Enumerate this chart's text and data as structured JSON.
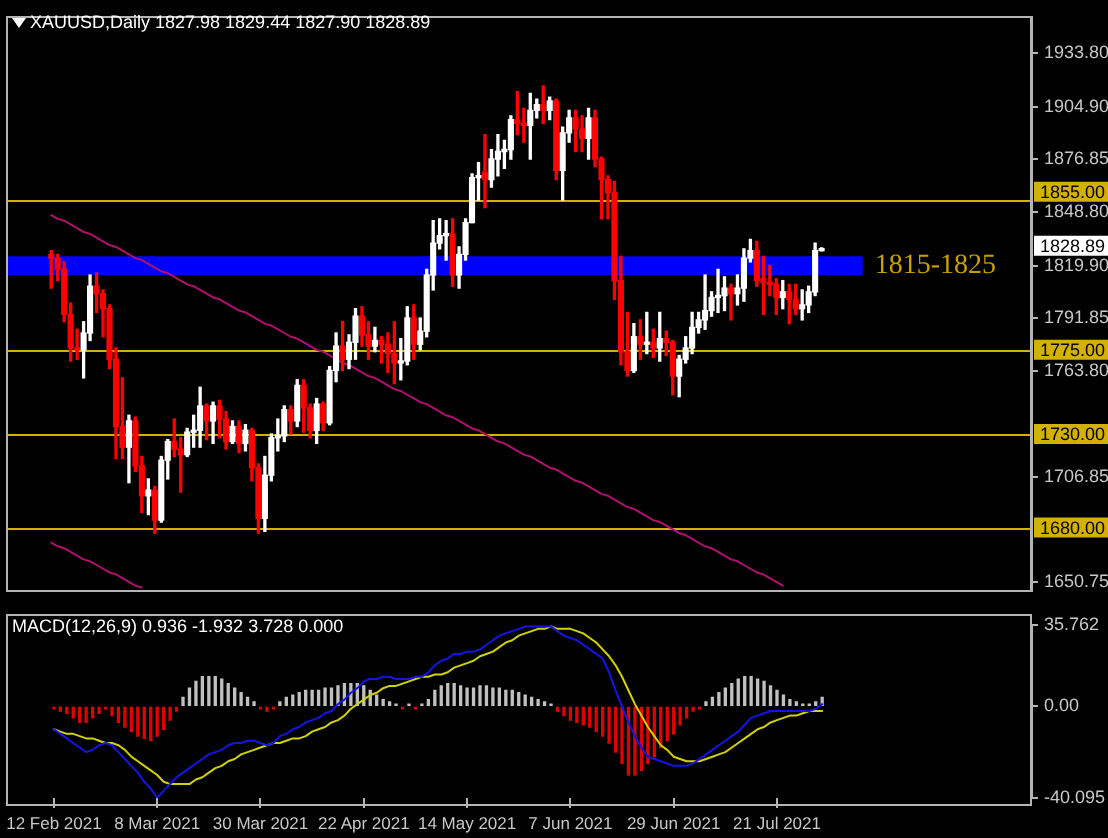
{
  "chart_data": [
    {
      "type": "candlestick",
      "title": "XAUUSD,Daily 1827.98 1829.44 1827.90 1828.89",
      "categories": [
        null,
        null,
        null,
        null,
        null,
        null,
        null,
        null,
        null,
        null,
        null,
        null,
        null,
        null,
        null,
        null,
        null,
        null,
        null,
        null,
        null,
        null,
        null,
        null,
        null,
        null,
        null,
        null,
        null,
        null,
        null,
        null,
        null,
        null,
        null,
        null,
        null,
        null,
        null,
        null,
        null,
        null,
        null,
        null,
        null,
        null,
        null,
        null,
        null,
        null,
        null,
        null,
        null,
        null,
        null,
        null,
        null,
        null,
        null,
        null,
        null,
        null,
        null,
        null,
        null,
        null,
        null,
        null,
        null,
        null,
        null,
        null,
        null,
        null,
        null,
        null,
        null,
        null,
        null,
        null,
        null,
        null,
        null,
        null,
        null,
        null,
        null,
        null,
        null,
        null,
        null,
        null,
        null,
        null,
        null,
        null,
        null,
        null,
        null,
        null,
        null,
        null,
        null,
        null,
        null,
        null,
        null,
        null,
        null,
        null,
        null,
        null,
        null,
        null,
        null,
        null,
        null,
        null,
        null,
        null,
        null,
        null,
        null,
        null,
        null,
        null,
        null,
        null,
        null,
        null,
        null,
        null,
        null,
        null,
        null,
        null,
        null,
        null,
        null,
        null,
        null,
        null,
        null,
        null,
        null,
        null,
        null,
        null,
        null,
        null,
        null,
        null
      ],
      "ohlc": [
        [
          1826,
          1828,
          1808,
          1824
        ],
        [
          1824,
          1826,
          1812,
          1818
        ],
        [
          1818,
          1822,
          1790,
          1794
        ],
        [
          1794,
          1800,
          1769,
          1776
        ],
        [
          1776,
          1786,
          1770,
          1775
        ],
        [
          1775,
          1790,
          1760,
          1784
        ],
        [
          1784,
          1815,
          1780,
          1809
        ],
        [
          1809,
          1816,
          1795,
          1805
        ],
        [
          1805,
          1807,
          1782,
          1797
        ],
        [
          1797,
          1799,
          1765,
          1770
        ],
        [
          1770,
          1776,
          1717,
          1734
        ],
        [
          1734,
          1760,
          1717,
          1723
        ],
        [
          1723,
          1740,
          1704,
          1737
        ],
        [
          1737,
          1739,
          1710,
          1713
        ],
        [
          1713,
          1718,
          1688,
          1697
        ],
        [
          1697,
          1706,
          1687,
          1700
        ],
        [
          1700,
          1702,
          1677,
          1684
        ],
        [
          1684,
          1718,
          1683,
          1716
        ],
        [
          1716,
          1727,
          1706,
          1726
        ],
        [
          1726,
          1738,
          1718,
          1722
        ],
        [
          1722,
          1728,
          1699,
          1719
        ],
        [
          1719,
          1733,
          1718,
          1731
        ],
        [
          1731,
          1740,
          1723,
          1732
        ],
        [
          1732,
          1755,
          1723,
          1745
        ],
        [
          1745,
          1746,
          1727,
          1737
        ],
        [
          1737,
          1747,
          1725,
          1745
        ],
        [
          1745,
          1748,
          1728,
          1738
        ],
        [
          1738,
          1742,
          1722,
          1726
        ],
        [
          1726,
          1737,
          1725,
          1734
        ],
        [
          1734,
          1737,
          1720,
          1725
        ],
        [
          1725,
          1735,
          1721,
          1732
        ],
        [
          1732,
          1733,
          1705,
          1712
        ],
        [
          1712,
          1714,
          1677,
          1685
        ],
        [
          1685,
          1718,
          1678,
          1708
        ],
        [
          1708,
          1730,
          1705,
          1728
        ],
        [
          1728,
          1738,
          1721,
          1729
        ],
        [
          1729,
          1745,
          1726,
          1743
        ],
        [
          1743,
          1745,
          1730,
          1737
        ],
        [
          1737,
          1759,
          1734,
          1756
        ],
        [
          1756,
          1759,
          1731,
          1744
        ],
        [
          1744,
          1746,
          1728,
          1732
        ],
        [
          1732,
          1749,
          1725,
          1746
        ],
        [
          1746,
          1747,
          1732,
          1736
        ],
        [
          1736,
          1766,
          1735,
          1764
        ],
        [
          1764,
          1784,
          1758,
          1777
        ],
        [
          1777,
          1790,
          1764,
          1770
        ],
        [
          1770,
          1783,
          1765,
          1779
        ],
        [
          1779,
          1797,
          1770,
          1793
        ],
        [
          1793,
          1798,
          1777,
          1783
        ],
        [
          1783,
          1790,
          1770,
          1777
        ],
        [
          1777,
          1787,
          1774,
          1780
        ],
        [
          1780,
          1782,
          1768,
          1778
        ],
        [
          1778,
          1784,
          1763,
          1773
        ],
        [
          1773,
          1790,
          1757,
          1768
        ],
        [
          1768,
          1781,
          1759,
          1769
        ],
        [
          1769,
          1798,
          1767,
          1792
        ],
        [
          1792,
          1799,
          1770,
          1778
        ],
        [
          1778,
          1792,
          1775,
          1785
        ],
        [
          1785,
          1818,
          1782,
          1815
        ],
        [
          1815,
          1844,
          1807,
          1832
        ],
        [
          1832,
          1845,
          1829,
          1836
        ],
        [
          1836,
          1844,
          1823,
          1837
        ],
        [
          1837,
          1845,
          1809,
          1815
        ],
        [
          1815,
          1830,
          1808,
          1826
        ],
        [
          1826,
          1845,
          1823,
          1843
        ],
        [
          1843,
          1869,
          1843,
          1867
        ],
        [
          1867,
          1875,
          1855,
          1868
        ],
        [
          1870,
          1890,
          1851,
          1866
        ],
        [
          1866,
          1882,
          1862,
          1877
        ],
        [
          1877,
          1890,
          1868,
          1881
        ],
        [
          1881,
          1887,
          1872,
          1882
        ],
        [
          1882,
          1900,
          1877,
          1898
        ],
        [
          1898,
          1913,
          1890,
          1896
        ],
        [
          1896,
          1904,
          1886,
          1895
        ],
        [
          1895,
          1912,
          1877,
          1903
        ],
        [
          1903,
          1909,
          1899,
          1906
        ],
        [
          1906,
          1916,
          1896,
          1903
        ],
        [
          1903,
          1910,
          1898,
          1908
        ],
        [
          1908,
          1909,
          1866,
          1871
        ],
        [
          1871,
          1894,
          1855,
          1891
        ],
        [
          1891,
          1903,
          1886,
          1899
        ],
        [
          1899,
          1903,
          1881,
          1893
        ],
        [
          1893,
          1900,
          1881,
          1888
        ],
        [
          1888,
          1904,
          1877,
          1899
        ],
        [
          1899,
          1903,
          1873,
          1877
        ],
        [
          1877,
          1878,
          1845,
          1866
        ],
        [
          1866,
          1868,
          1845,
          1859
        ],
        [
          1859,
          1865,
          1802,
          1812
        ],
        [
          1812,
          1825,
          1767,
          1774
        ],
        [
          1774,
          1795,
          1761,
          1764
        ],
        [
          1764,
          1789,
          1763,
          1782
        ],
        [
          1782,
          1791,
          1770,
          1778
        ],
        [
          1778,
          1795,
          1773,
          1779
        ],
        [
          1779,
          1786,
          1771,
          1776
        ],
        [
          1776,
          1795,
          1769,
          1781
        ],
        [
          1781,
          1785,
          1772,
          1779
        ],
        [
          1779,
          1780,
          1751,
          1761
        ],
        [
          1761,
          1772,
          1750,
          1770
        ],
        [
          1770,
          1782,
          1768,
          1776
        ],
        [
          1776,
          1795,
          1773,
          1787
        ],
        [
          1787,
          1795,
          1784,
          1791
        ],
        [
          1791,
          1815,
          1786,
          1796
        ],
        [
          1796,
          1806,
          1793,
          1803
        ],
        [
          1803,
          1818,
          1795,
          1804
        ],
        [
          1804,
          1814,
          1796,
          1808
        ],
        [
          1808,
          1810,
          1791,
          1805
        ],
        [
          1805,
          1815,
          1799,
          1808
        ],
        [
          1808,
          1829,
          1801,
          1824
        ],
        [
          1824,
          1834,
          1822,
          1828
        ],
        [
          1828,
          1833,
          1809,
          1812
        ],
        [
          1813,
          1825,
          1794,
          1811
        ],
        [
          1811,
          1820,
          1804,
          1810
        ],
        [
          1810,
          1813,
          1794,
          1803
        ],
        [
          1803,
          1812,
          1797,
          1806
        ],
        [
          1806,
          1810,
          1789,
          1802
        ],
        [
          1802,
          1810,
          1794,
          1797
        ],
        [
          1797,
          1807,
          1791,
          1799
        ],
        [
          1799,
          1809,
          1795,
          1806
        ],
        [
          1806,
          1832,
          1804,
          1828
        ],
        [
          1827.98,
          1829.44,
          1827.9,
          1828.89
        ],
        null,
        null,
        null,
        null,
        null,
        null,
        null,
        null,
        null,
        null,
        null,
        null,
        null,
        null,
        null,
        null,
        null,
        null,
        null,
        null,
        null,
        null,
        null,
        null,
        null,
        null,
        null,
        null,
        null,
        null,
        null,
        null
      ],
      "colors": [
        "#ff0000",
        "#ff0000",
        "#ff0000",
        "#ff0000",
        "#ff0000",
        "#ffffff",
        "#ffffff",
        "#ff0000",
        "#ff0000",
        "#ff0000",
        "#ff0000",
        "#ff0000",
        "#ffffff",
        "#ff0000",
        "#ff0000",
        "#ffffff",
        "#ff0000",
        "#ffffff",
        "#ffffff",
        "#ff0000",
        "#ff0000",
        "#ffffff",
        "#ffffff",
        "#ffffff",
        "#ff0000",
        "#ffffff",
        "#ff0000",
        "#ff0000",
        "#ffffff",
        "#ff0000",
        "#ffffff",
        "#ff0000",
        "#ff0000",
        "#ffffff",
        "#ffffff",
        "#ffffff",
        "#ffffff",
        "#ff0000",
        "#ffffff",
        "#ff0000",
        "#ff0000",
        "#ffffff",
        "#ff0000",
        "#ffffff",
        "#ffffff",
        "#ff0000",
        "#ffffff",
        "#ffffff",
        "#ff0000",
        "#ff0000",
        "#ffffff",
        "#ff0000",
        "#ff0000",
        "#ff0000",
        "#ffffff",
        "#ffffff",
        "#ff0000",
        "#ffffff",
        "#ffffff",
        "#ffffff",
        "#ffffff",
        "#ffffff",
        "#ff0000",
        "#ffffff",
        "#ffffff",
        "#ffffff",
        "#ffffff",
        "#ff0000",
        "#ffffff",
        "#ffffff",
        "#ffffff",
        "#ffffff",
        "#ff0000",
        "#ff0000",
        "#ffffff",
        "#ffffff",
        "#ff0000",
        "#ffffff",
        "#ff0000",
        "#ffffff",
        "#ffffff",
        "#ff0000",
        "#ff0000",
        "#ffffff",
        "#ff0000",
        "#ff0000",
        "#ff0000",
        "#ff0000",
        "#ff0000",
        "#ff0000",
        "#ffffff",
        "#ff0000",
        "#ffffff",
        "#ff0000",
        "#ffffff",
        "#ff0000",
        "#ff0000",
        "#ffffff",
        "#ffffff",
        "#ffffff",
        "#ffffff",
        "#ffffff",
        "#ffffff",
        "#ffffff",
        "#ffffff",
        "#ff0000",
        "#ffffff",
        "#ffffff",
        "#ffffff",
        "#ff0000",
        "#ff0000",
        "#ff0000",
        "#ff0000",
        "#ffffff",
        "#ff0000",
        "#ff0000",
        "#ffffff",
        "#ffffff",
        "#ffffff",
        "#ffffff",
        null,
        null,
        null,
        null,
        null,
        null,
        null,
        null,
        null,
        null,
        null,
        null,
        null,
        null,
        null,
        null,
        null,
        null,
        null,
        null,
        null,
        null,
        null,
        null,
        null,
        null,
        null,
        null,
        null,
        null,
        null,
        null
      ],
      "series": [
        {
          "type": "line",
          "color": "#b0106e",
          "values": [
            1847,
            1845,
            1844,
            1842,
            1840,
            1838,
            1837,
            1835,
            1833,
            1831,
            1830,
            1828,
            1826,
            1824,
            1823,
            1821,
            1819,
            1817,
            1816,
            1814,
            1812,
            1810,
            1809,
            1807,
            1805,
            1803,
            1802,
            1800,
            1798,
            1796,
            1795,
            1793,
            1791,
            1789,
            1788,
            1786,
            1784,
            1782,
            1781,
            1779,
            1777,
            1775,
            1774,
            1772,
            1770,
            1768,
            1767,
            1765,
            1763,
            1761,
            1760,
            1758,
            1756,
            1754,
            1753,
            1751,
            1749,
            1747,
            1746,
            1744,
            1742,
            1740,
            1739,
            1737,
            1735,
            1733,
            1732,
            1730,
            1728,
            1726,
            1725,
            1723,
            1721,
            1719,
            1718,
            1716,
            1714,
            1712,
            1711,
            1709,
            1707,
            1705,
            1704,
            1702,
            1700,
            1698,
            1697,
            1695,
            1693,
            1691,
            1690,
            1688,
            1686,
            1684,
            1683,
            1681,
            1679,
            1677,
            1676,
            1674,
            1672,
            1670,
            1669,
            1667,
            1665,
            1663,
            1662,
            1660,
            1658,
            1656,
            1655,
            1653,
            1651,
            1649,
            null,
            null,
            null,
            null,
            null,
            null,
            null,
            null,
            null,
            null,
            null,
            null,
            null,
            null,
            null,
            null,
            null,
            null,
            null,
            null,
            null,
            null,
            null,
            null,
            null,
            null,
            null,
            null,
            null,
            null,
            null,
            null,
            null,
            null,
            null,
            null,
            null,
            null
          ]
        },
        {
          "type": "line",
          "color": "#b0106e",
          "values": [
            1672,
            1670,
            1669,
            1667,
            1665,
            1663,
            1662,
            1660,
            1658,
            1656,
            1655,
            1653,
            1651,
            1649,
            1648,
            null,
            null,
            null,
            null,
            null,
            null,
            null,
            null,
            null,
            null,
            null,
            null,
            null,
            null,
            null,
            null,
            null,
            null,
            null,
            null,
            null,
            null,
            null,
            null,
            null,
            null,
            null,
            null,
            null,
            null,
            null,
            null,
            null,
            null,
            null,
            null,
            null,
            null,
            null,
            null,
            null,
            null,
            null,
            null,
            null,
            null,
            null,
            null,
            null,
            null,
            null,
            null,
            null,
            null,
            null,
            null,
            null,
            null,
            null,
            null,
            null,
            null,
            null,
            null,
            null,
            null,
            null,
            null,
            null,
            null,
            null,
            null,
            null,
            null,
            null,
            null,
            null,
            null,
            null,
            null,
            null,
            null,
            null,
            null,
            null,
            null,
            null,
            null,
            null,
            null,
            null,
            null,
            null,
            null,
            null,
            null,
            null,
            null,
            null,
            null,
            null,
            null,
            null,
            null,
            null,
            null,
            null,
            null,
            null,
            null,
            null,
            null,
            null,
            null,
            null,
            null,
            null,
            null,
            null,
            null,
            null,
            null,
            null,
            null,
            null,
            null,
            null,
            null,
            null,
            null,
            null,
            null,
            null,
            null,
            null,
            null,
            null
          ]
        }
      ],
      "ylim": [
        1646,
        1953
      ],
      "yticks": [
        1650.75,
        1706.85,
        {
          "value": 1763.8,
          "label": "1763.80"
        },
        1791.85,
        {
          "value": 1819.9,
          "label": "1819.90"
        },
        {
          "value": 1848.8,
          "label": "1848.80"
        },
        1876.85,
        {
          "value": 1904.9,
          "label": "1904.90"
        },
        {
          "value": 1933.8,
          "label": "1933.80"
        }
      ],
      "tick_labels": "y",
      "ref_lines": [
        {
          "axis": "y",
          "value": 1855,
          "label": "1855.00",
          "color": "#d4b000"
        },
        {
          "axis": "y",
          "value": 1775,
          "label": "1775.00",
          "color": "#d4b000"
        },
        {
          "axis": "y",
          "value": 1730,
          "label": "1730.00",
          "color": "#d4b000"
        },
        {
          "axis": "y",
          "value": 1680,
          "label": "1680.00",
          "color": "#d4b000"
        }
      ],
      "bands": [
        {
          "axis": "y",
          "from": 1815,
          "to": 1825,
          "label": "1815-1825",
          "color": "#0000ff"
        }
      ],
      "annotations": [
        "1828.89"
      ]
    },
    {
      "type": "bar",
      "title": "MACD(12,26,9) 0.936 -1.932 3.728 0.000",
      "categories": [
        "12 Feb 2021",
        null,
        null,
        null,
        null,
        null,
        null,
        null,
        null,
        null,
        null,
        null,
        null,
        null,
        null,
        null,
        "8 Mar 2021",
        null,
        null,
        null,
        null,
        null,
        null,
        null,
        null,
        null,
        null,
        null,
        null,
        null,
        null,
        null,
        "30 Mar 2021",
        null,
        null,
        null,
        null,
        null,
        null,
        null,
        null,
        null,
        null,
        null,
        null,
        null,
        null,
        null,
        "22 Apr 2021",
        null,
        null,
        null,
        null,
        null,
        null,
        null,
        null,
        null,
        null,
        null,
        null,
        null,
        null,
        null,
        "14 May 2021",
        null,
        null,
        null,
        null,
        null,
        null,
        null,
        null,
        null,
        null,
        null,
        null,
        null,
        null,
        null,
        "7 Jun 2021",
        null,
        null,
        null,
        null,
        null,
        null,
        null,
        null,
        null,
        null,
        null,
        null,
        null,
        null,
        null,
        "29 Jun 2021",
        null,
        null,
        null,
        null,
        null,
        null,
        null,
        null,
        null,
        null,
        null,
        null,
        null,
        null,
        null,
        "21 Jul 2021",
        null,
        null,
        null,
        null,
        null,
        null,
        null,
        null,
        null,
        null,
        null,
        null,
        null,
        null,
        null,
        null,
        null,
        null,
        null,
        null,
        null,
        null,
        null,
        null,
        null,
        null,
        null,
        null,
        null,
        null,
        null,
        null,
        null,
        null,
        null,
        null,
        null,
        null,
        null
      ],
      "series": [
        {
          "values": [
            -1,
            -2,
            -3,
            -5,
            -7,
            -7,
            -5,
            -3,
            -1,
            -4,
            -7,
            -9,
            -11,
            -13,
            -14,
            -15,
            -13,
            -10,
            -6,
            -2,
            4,
            8,
            11,
            13,
            13,
            13,
            12,
            10,
            8,
            6,
            4,
            2,
            -1,
            -2,
            -1,
            2,
            4,
            5,
            6,
            7,
            7,
            7,
            8,
            8,
            9,
            10,
            10,
            10,
            9,
            7,
            5,
            3,
            2,
            1,
            -1,
            1,
            -1,
            1,
            3,
            7,
            9,
            10,
            10,
            9,
            8,
            8,
            9,
            9,
            8,
            8,
            7,
            7,
            6,
            5,
            4,
            3,
            2,
            1,
            -2,
            -4,
            -6,
            -7,
            -8,
            -9,
            -11,
            -13,
            -16,
            -20,
            -25,
            -30,
            -30,
            -28,
            -25,
            -22,
            -18,
            -15,
            -12,
            -8,
            -5,
            -2,
            -1,
            2,
            4,
            6,
            8,
            10,
            12,
            13,
            13,
            12,
            11,
            9,
            7,
            5,
            3,
            2,
            1,
            1,
            2,
            4,
            null,
            null,
            null,
            null,
            null,
            null,
            null,
            null,
            null,
            null,
            null,
            null,
            null,
            null,
            null,
            null,
            null,
            null,
            null,
            null,
            null,
            null,
            null,
            null,
            null,
            null,
            null,
            null,
            null,
            null,
            null,
            null
          ],
          "colors": [
            "#e00000",
            "#e00000",
            "#e00000",
            "#e00000",
            "#e00000",
            "#e00000",
            "#e00000",
            "#e00000",
            "#e00000",
            "#e00000",
            "#e00000",
            "#e00000",
            "#e00000",
            "#e00000",
            "#e00000",
            "#e00000",
            "#e00000",
            "#e00000",
            "#e00000",
            "#e00000",
            "#c0c0c0",
            "#c0c0c0",
            "#c0c0c0",
            "#c0c0c0",
            "#c0c0c0",
            "#c0c0c0",
            "#c0c0c0",
            "#c0c0c0",
            "#c0c0c0",
            "#c0c0c0",
            "#c0c0c0",
            "#c0c0c0",
            "#e00000",
            "#e00000",
            "#e00000",
            "#c0c0c0",
            "#c0c0c0",
            "#c0c0c0",
            "#c0c0c0",
            "#c0c0c0",
            "#c0c0c0",
            "#c0c0c0",
            "#c0c0c0",
            "#c0c0c0",
            "#c0c0c0",
            "#c0c0c0",
            "#c0c0c0",
            "#c0c0c0",
            "#c0c0c0",
            "#c0c0c0",
            "#c0c0c0",
            "#c0c0c0",
            "#c0c0c0",
            "#c0c0c0",
            "#e00000",
            "#c0c0c0",
            "#e00000",
            "#c0c0c0",
            "#c0c0c0",
            "#c0c0c0",
            "#c0c0c0",
            "#c0c0c0",
            "#c0c0c0",
            "#c0c0c0",
            "#c0c0c0",
            "#c0c0c0",
            "#c0c0c0",
            "#c0c0c0",
            "#c0c0c0",
            "#c0c0c0",
            "#c0c0c0",
            "#c0c0c0",
            "#c0c0c0",
            "#c0c0c0",
            "#c0c0c0",
            "#c0c0c0",
            "#c0c0c0",
            "#c0c0c0",
            "#e00000",
            "#e00000",
            "#e00000",
            "#e00000",
            "#e00000",
            "#e00000",
            "#e00000",
            "#e00000",
            "#e00000",
            "#e00000",
            "#e00000",
            "#e00000",
            "#e00000",
            "#e00000",
            "#e00000",
            "#e00000",
            "#e00000",
            "#e00000",
            "#e00000",
            "#e00000",
            "#e00000",
            "#e00000",
            "#e00000",
            "#c0c0c0",
            "#c0c0c0",
            "#c0c0c0",
            "#c0c0c0",
            "#c0c0c0",
            "#c0c0c0",
            "#c0c0c0",
            "#c0c0c0",
            "#c0c0c0",
            "#c0c0c0",
            "#c0c0c0",
            "#c0c0c0",
            "#c0c0c0",
            "#c0c0c0",
            "#c0c0c0",
            "#c0c0c0",
            "#c0c0c0",
            "#c0c0c0",
            "#c0c0c0",
            null,
            null,
            null,
            null,
            null,
            null,
            null,
            null,
            null,
            null,
            null,
            null,
            null,
            null,
            null,
            null,
            null,
            null,
            null,
            null,
            null,
            null,
            null,
            null,
            null,
            null,
            null,
            null,
            null,
            null,
            null,
            null
          ]
        },
        {
          "type": "line",
          "color": "#1414e6",
          "values": [
            -10,
            -12,
            -14,
            -16,
            -18,
            -20,
            -19,
            -17,
            -16,
            -17,
            -20,
            -23,
            -26,
            -29,
            -33,
            -36,
            -40,
            -37,
            -34,
            -31,
            -29,
            -27,
            -25,
            -23,
            -21,
            -20,
            -19,
            -17,
            -16,
            -16,
            -15,
            -15,
            -16,
            -17,
            -16,
            -13,
            -12,
            -10,
            -9,
            -7,
            -6,
            -5,
            -3,
            -2,
            1,
            3,
            6,
            8,
            11,
            12,
            12,
            13,
            13,
            12,
            12,
            12,
            13,
            13,
            15,
            18,
            20,
            21,
            23,
            23,
            24,
            24,
            25,
            27,
            29,
            31,
            32,
            33,
            34,
            35,
            35,
            35,
            35,
            35,
            33,
            31,
            30,
            29,
            27,
            25,
            23,
            21,
            15,
            7,
            0,
            -7,
            -13,
            -18,
            -22,
            -23,
            -24,
            -25,
            -26,
            -26,
            -26,
            -25,
            -23,
            -21,
            -19,
            -17,
            -15,
            -13,
            -11,
            -8,
            -5,
            -4,
            -3,
            -2,
            -2,
            -2,
            -2,
            -2,
            -2,
            -2,
            -1,
            1,
            null,
            null,
            null,
            null,
            null,
            null,
            null,
            null,
            null,
            null,
            null,
            null,
            null,
            null,
            null,
            null,
            null,
            null,
            null,
            null,
            null,
            null,
            null,
            null,
            null,
            null,
            null,
            null,
            null,
            null,
            null,
            null
          ]
        },
        {
          "type": "line",
          "color": "#d2d200",
          "values": [
            -10,
            -11,
            -12,
            -12,
            -13,
            -14,
            -14,
            -15,
            -16,
            -16,
            -17,
            -19,
            -22,
            -24,
            -26,
            -28,
            -30,
            -33,
            -34,
            -34,
            -34,
            -34,
            -32,
            -31,
            -29,
            -27,
            -26,
            -24,
            -23,
            -21,
            -20,
            -19,
            -18,
            -17,
            -16,
            -16,
            -15,
            -14,
            -14,
            -13,
            -11,
            -10,
            -9,
            -7,
            -6,
            -4,
            -1,
            1,
            3,
            5,
            6,
            8,
            9,
            9,
            10,
            11,
            12,
            13,
            13,
            14,
            14,
            15,
            17,
            18,
            19,
            20,
            22,
            23,
            24,
            26,
            28,
            29,
            31,
            32,
            33,
            34,
            34,
            35,
            34,
            34,
            34,
            33,
            32,
            30,
            28,
            25,
            22,
            18,
            13,
            7,
            1,
            -4,
            -9,
            -13,
            -17,
            -19,
            -22,
            -23,
            -24,
            -24,
            -24,
            -23,
            -22,
            -21,
            -20,
            -18,
            -16,
            -14,
            -12,
            -10,
            -9,
            -7,
            -6,
            -5,
            -4,
            -4,
            -3,
            -2,
            -2,
            -2,
            null,
            null,
            null,
            null,
            null,
            null,
            null,
            null,
            null,
            null,
            null,
            null,
            null,
            null,
            null,
            null,
            null,
            null,
            null,
            null,
            null,
            null,
            null,
            null,
            null,
            null,
            null,
            null,
            null,
            null,
            null,
            null
          ]
        }
      ],
      "ylim": [
        -40.095,
        35.762
      ],
      "yticks": [
        -40.095,
        {
          "value": 0,
          "label": "0.00"
        },
        35.762
      ]
    }
  ]
}
